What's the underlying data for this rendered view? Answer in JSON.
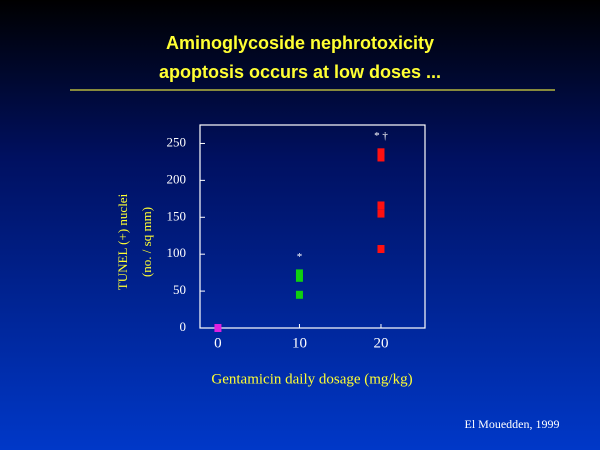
{
  "chart_data": {
    "type": "scatter",
    "title": [
      "Aminoglycoside nephrotoxicity",
      "apoptosis occurs at low doses ..."
    ],
    "y_label": [
      "TUNEL (+) nuclei",
      "(no. / sq mm)"
    ],
    "x_label": "Gentamicin daily dosage (mg/kg)",
    "source": "El Mouedden, 1999",
    "x": [
      0,
      10,
      10,
      10,
      20,
      20,
      20,
      20,
      20
    ],
    "values": [
      0,
      74,
      68,
      45,
      238,
      231,
      166,
      155,
      107
    ],
    "colors": [
      "#e020e0",
      "#10d010",
      "#10d010",
      "#10d010",
      "#ff1010",
      "#ff1010",
      "#ff1010",
      "#ff1010",
      "#ff1010"
    ],
    "annotations": [
      {
        "text": "*",
        "x": 10
      },
      {
        "text": "* †",
        "x": 20
      }
    ],
    "xlim": [
      -2.2,
      25.4
    ],
    "xticks": [
      0,
      10,
      20
    ],
    "ylim": [
      0,
      275
    ],
    "yticks": [
      0,
      50,
      100,
      150,
      200,
      250
    ]
  }
}
